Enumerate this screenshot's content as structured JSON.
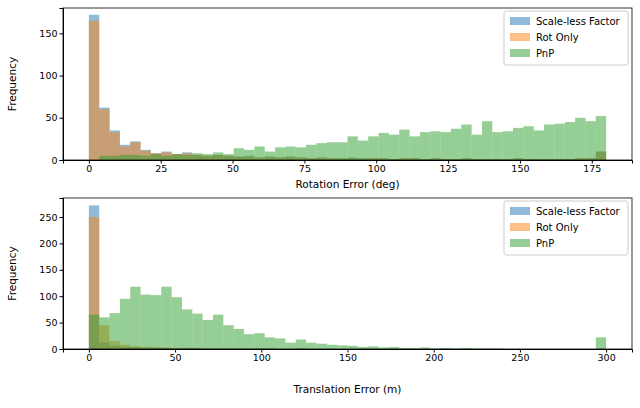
{
  "chart_data": [
    {
      "type": "histogram",
      "x_label": "Rotation Error (deg)",
      "y_label": "Frequency",
      "xlim": [
        -9,
        189
      ],
      "ylim": [
        0,
        180
      ],
      "xticks": [
        0,
        25,
        50,
        75,
        100,
        125,
        150,
        175
      ],
      "yticks": [
        0,
        50,
        100,
        150
      ],
      "grid": false,
      "legend": "upper right",
      "bins": [
        0,
        3.6,
        7.2,
        10.8,
        14.4,
        18,
        21.6,
        25.2,
        28.8,
        32.4,
        36,
        39.6,
        43.2,
        46.8,
        50.4,
        54,
        57.6,
        61.2,
        64.8,
        68.4,
        72,
        75.6,
        79.2,
        82.8,
        86.4,
        90,
        93.6,
        97.2,
        100.8,
        104.4,
        108,
        111.6,
        115.2,
        118.8,
        122.4,
        126,
        129.6,
        133.2,
        136.8,
        140.4,
        144,
        147.6,
        151.2,
        154.8,
        158.4,
        162,
        165.6,
        169.2,
        172.8,
        176.4,
        180
      ],
      "series": [
        {
          "name": "Scale-less Factor",
          "color": "#1f77b4",
          "values": [
            172,
            62,
            35,
            18,
            22,
            12,
            8,
            10,
            7,
            9,
            6,
            5,
            6,
            5,
            4,
            5,
            3,
            4,
            3,
            4,
            3,
            2,
            3,
            2,
            2,
            3,
            2,
            2,
            2,
            1,
            2,
            2,
            1,
            2,
            1,
            1,
            2,
            1,
            1,
            1,
            1,
            2,
            1,
            1,
            1,
            1,
            1,
            2,
            2,
            10
          ]
        },
        {
          "name": "Rot Only",
          "color": "#ff7f0e",
          "values": [
            165,
            60,
            33,
            16,
            21,
            11,
            8,
            9,
            7,
            8,
            6,
            5,
            6,
            5,
            4,
            4,
            3,
            4,
            3,
            4,
            3,
            2,
            3,
            2,
            2,
            2,
            2,
            2,
            2,
            1,
            2,
            2,
            1,
            2,
            1,
            1,
            2,
            1,
            1,
            1,
            1,
            2,
            1,
            1,
            1,
            1,
            1,
            2,
            2,
            10
          ]
        },
        {
          "name": "PnP",
          "color": "#2ca02c",
          "values": [
            0,
            5,
            5,
            6,
            6,
            5,
            7,
            5,
            7,
            6,
            8,
            7,
            9,
            7,
            14,
            12,
            16,
            10,
            15,
            16,
            15,
            18,
            20,
            21,
            21,
            28,
            23,
            28,
            32,
            30,
            36,
            28,
            33,
            34,
            33,
            37,
            42,
            30,
            46,
            33,
            34,
            38,
            40,
            35,
            42,
            43,
            45,
            50,
            46,
            52
          ]
        }
      ]
    },
    {
      "type": "histogram",
      "x_label": "Translation Error (m)",
      "y_label": "Frequency",
      "xlim": [
        -15,
        315
      ],
      "ylim": [
        0,
        286
      ],
      "xticks": [
        0,
        50,
        100,
        150,
        200,
        250,
        300
      ],
      "yticks": [
        0,
        50,
        100,
        150,
        200,
        250
      ],
      "grid": false,
      "legend": "upper right",
      "bins": [
        0,
        6,
        12,
        18,
        24,
        30,
        36,
        42,
        48,
        54,
        60,
        66,
        72,
        78,
        84,
        90,
        96,
        102,
        108,
        114,
        120,
        126,
        132,
        138,
        144,
        150,
        156,
        162,
        168,
        174,
        180,
        186,
        192,
        198,
        204,
        210,
        216,
        222,
        228,
        234,
        240,
        246,
        252,
        258,
        264,
        270,
        276,
        282,
        288,
        294,
        300
      ],
      "series": [
        {
          "name": "Scale-less Factor",
          "color": "#1f77b4",
          "values": [
            272,
            12,
            6,
            4,
            4,
            3,
            3,
            2,
            2,
            2,
            2,
            1,
            1,
            1,
            1,
            1,
            1,
            1,
            0,
            0,
            1,
            0,
            0,
            0,
            0,
            0,
            0,
            0,
            0,
            0,
            0,
            0,
            0,
            0,
            0,
            0,
            0,
            0,
            0,
            0,
            0,
            0,
            0,
            0,
            0,
            0,
            0,
            0,
            0,
            0
          ]
        },
        {
          "name": "Rot Only",
          "color": "#ff7f0e",
          "values": [
            250,
            45,
            15,
            8,
            5,
            4,
            3,
            3,
            2,
            2,
            2,
            1,
            1,
            1,
            1,
            1,
            1,
            1,
            0,
            0,
            1,
            0,
            0,
            0,
            0,
            0,
            0,
            0,
            0,
            0,
            0,
            0,
            0,
            0,
            0,
            0,
            0,
            0,
            0,
            0,
            0,
            0,
            0,
            0,
            0,
            0,
            0,
            0,
            0,
            0
          ]
        },
        {
          "name": "PnP",
          "color": "#2ca02c",
          "values": [
            65,
            60,
            68,
            95,
            118,
            103,
            102,
            118,
            98,
            75,
            67,
            55,
            65,
            45,
            38,
            28,
            30,
            22,
            20,
            12,
            18,
            12,
            10,
            8,
            7,
            6,
            4,
            5,
            3,
            4,
            2,
            2,
            3,
            1,
            2,
            1,
            2,
            1,
            1,
            1,
            0,
            0,
            0,
            0,
            0,
            0,
            0,
            0,
            0,
            22
          ]
        }
      ]
    }
  ]
}
